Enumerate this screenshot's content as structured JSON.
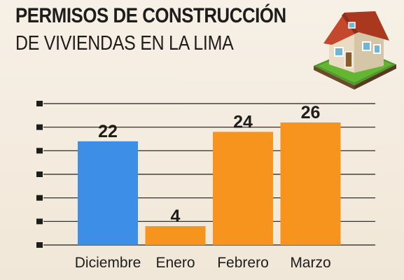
{
  "header": {
    "title": "PERMISOS DE CONSTRUCCIÓN",
    "subtitle": "DE VIVIENDAS EN LA LIMA"
  },
  "illustration": {
    "icon": "house-icon"
  },
  "chart_data": {
    "type": "bar",
    "title": "PERMISOS DE CONSTRUCCIÓN DE VIVIENDAS EN LA LIMA",
    "categories": [
      "Diciembre",
      "Enero",
      "Febrero",
      "Marzo"
    ],
    "values": [
      22,
      4,
      24,
      26
    ],
    "data_labels": [
      "22",
      "4",
      "24",
      "26"
    ],
    "colors": [
      "#3c8ee6",
      "#f7941d",
      "#f7941d",
      "#f7941d"
    ],
    "xlabel": "",
    "ylabel": "",
    "ylim": [
      0,
      30
    ],
    "grid": true,
    "legend": "none"
  }
}
